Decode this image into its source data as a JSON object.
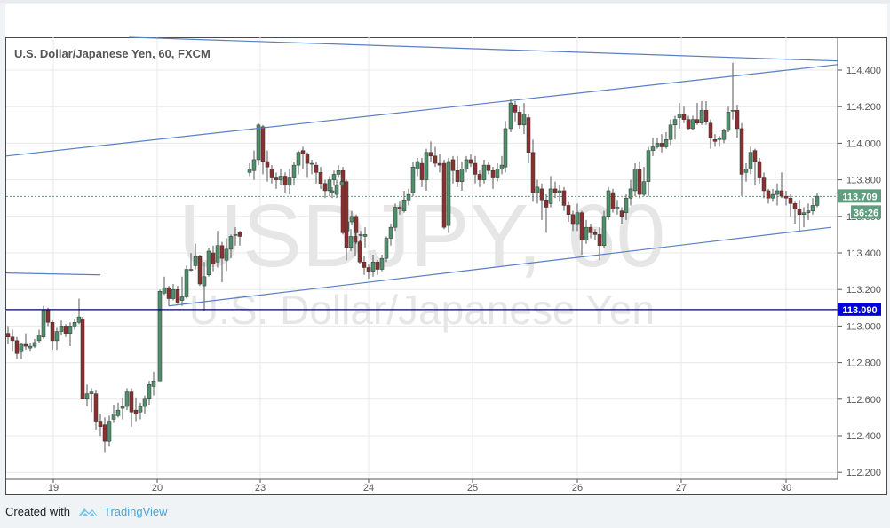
{
  "header": {
    "title": "U.S. Dollar/Japanese Yen, 60, FXCM"
  },
  "watermark": {
    "symbol": "USDJPY, 60",
    "name": "U.S. Dollar/Japanese Yen"
  },
  "footer": {
    "created_with": "Created with",
    "brand": "TradingView"
  },
  "price_axis": {
    "last_price": "113.709",
    "countdown": "36:26",
    "horizontal_line_price": "113.090",
    "colors": {
      "last_price_bg": "#5f9f7f",
      "hline_bg": "#0000d8",
      "hline": "#000066",
      "up": "#4f8f6c",
      "down": "#8b2f2f",
      "trendline": "#5a7fc4"
    }
  },
  "chart_data": {
    "type": "candlestick",
    "title": "U.S. Dollar/Japanese Yen, 60, FXCM",
    "xlabel": "",
    "ylabel": "",
    "x_ticks": [
      "19",
      "20",
      "23",
      "24",
      "25",
      "26",
      "27",
      "30"
    ],
    "y_ticks": [
      "114.400",
      "114.200",
      "114.000",
      "113.800",
      "113.600",
      "113.400",
      "113.200",
      "113.000",
      "112.800",
      "112.600",
      "112.400",
      "112.200"
    ],
    "ylim": [
      112.17,
      114.58
    ],
    "grid": true,
    "last_price": 113.709,
    "horizontal_line": 113.09,
    "trendlines": [
      {
        "name": "upper-channel",
        "from": [
          7,
          113.93
        ],
        "to": [
          943,
          114.43
        ]
      },
      {
        "name": "lower-channel",
        "from": [
          190,
          113.11
        ],
        "to": [
          936,
          113.54
        ]
      },
      {
        "name": "top-resistance",
        "from": [
          145,
          114.58
        ],
        "to": [
          943,
          114.45
        ]
      },
      {
        "name": "short-left",
        "from": [
          7,
          113.29
        ],
        "to": [
          113,
          113.28
        ]
      }
    ],
    "candles": [
      [
        9,
        112.96,
        112.94,
        113.0,
        112.9
      ],
      [
        14,
        112.94,
        112.92,
        112.98,
        112.86
      ],
      [
        19,
        112.92,
        112.85,
        112.94,
        112.82
      ],
      [
        24,
        112.86,
        112.9,
        112.91,
        112.82
      ],
      [
        29,
        112.9,
        112.89,
        112.96,
        112.87
      ],
      [
        34,
        112.88,
        112.89,
        112.91,
        112.86
      ],
      [
        39,
        112.89,
        112.91,
        112.93,
        112.88
      ],
      [
        44,
        112.92,
        112.95,
        112.98,
        112.91
      ],
      [
        49,
        112.94,
        113.09,
        113.11,
        112.93
      ],
      [
        54,
        113.09,
        113.02,
        113.1,
        113.0
      ],
      [
        59,
        113.02,
        112.92,
        113.03,
        112.87
      ],
      [
        64,
        112.92,
        112.97,
        112.99,
        112.87
      ],
      [
        69,
        112.97,
        113.0,
        113.03,
        112.95
      ],
      [
        74,
        113.0,
        112.96,
        113.01,
        112.94
      ],
      [
        79,
        112.96,
        113.0,
        113.02,
        112.89
      ],
      [
        84,
        113.0,
        113.02,
        113.04,
        112.98
      ],
      [
        89,
        113.02,
        113.05,
        113.15,
        113.01
      ],
      [
        93,
        113.04,
        112.6,
        113.05,
        112.6
      ],
      [
        98,
        112.6,
        112.63,
        112.68,
        112.56
      ],
      [
        103,
        112.63,
        112.64,
        112.66,
        112.53
      ],
      [
        108,
        112.63,
        112.48,
        112.65,
        112.43
      ],
      [
        113,
        112.48,
        112.45,
        112.52,
        112.4
      ],
      [
        118,
        112.46,
        112.37,
        112.5,
        112.31
      ],
      [
        123,
        112.37,
        112.48,
        112.51,
        112.34
      ],
      [
        128,
        112.49,
        112.52,
        112.57,
        112.47
      ],
      [
        133,
        112.51,
        112.54,
        112.58,
        112.5
      ],
      [
        138,
        112.55,
        112.56,
        112.61,
        112.49
      ],
      [
        143,
        112.56,
        112.64,
        112.66,
        112.54
      ],
      [
        148,
        112.64,
        112.53,
        112.66,
        112.45
      ],
      [
        153,
        112.54,
        112.52,
        112.61,
        112.48
      ],
      [
        158,
        112.53,
        112.56,
        112.58,
        112.49
      ],
      [
        163,
        112.56,
        112.6,
        112.62,
        112.52
      ],
      [
        168,
        112.6,
        112.68,
        112.7,
        112.57
      ],
      [
        173,
        112.67,
        112.7,
        112.75,
        112.62
      ],
      [
        180,
        112.7,
        113.19,
        113.2,
        112.7
      ],
      [
        185,
        113.18,
        113.21,
        113.27,
        113.17
      ],
      [
        190,
        113.21,
        113.15,
        113.22,
        113.11
      ],
      [
        195,
        113.15,
        113.2,
        113.23,
        113.14
      ],
      [
        200,
        113.2,
        113.13,
        113.22,
        113.12
      ],
      [
        205,
        113.14,
        113.16,
        113.27,
        113.11
      ],
      [
        210,
        113.16,
        113.31,
        113.33,
        113.15
      ],
      [
        215,
        113.31,
        113.31,
        113.4,
        113.3
      ],
      [
        220,
        113.33,
        113.38,
        113.45,
        113.31
      ],
      [
        225,
        113.38,
        113.23,
        113.39,
        113.22
      ],
      [
        230,
        113.22,
        113.27,
        113.35,
        113.08
      ],
      [
        235,
        113.28,
        113.41,
        113.43,
        113.27
      ],
      [
        240,
        113.4,
        113.34,
        113.44,
        113.3
      ],
      [
        245,
        113.35,
        113.44,
        113.52,
        113.32
      ],
      [
        250,
        113.44,
        113.37,
        113.46,
        113.24
      ],
      [
        255,
        113.36,
        113.42,
        113.48,
        113.3
      ],
      [
        260,
        113.42,
        113.49,
        113.5,
        113.37
      ],
      [
        265,
        113.5,
        113.5,
        113.54,
        113.44
      ],
      [
        270,
        113.51,
        113.49,
        113.52,
        113.44
      ],
      [
        281,
        113.84,
        113.86,
        113.89,
        113.82
      ],
      [
        286,
        113.85,
        113.91,
        113.96,
        113.8
      ],
      [
        291,
        113.91,
        114.1,
        114.11,
        113.88
      ],
      [
        296,
        114.09,
        113.9,
        114.1,
        113.83
      ],
      [
        301,
        113.9,
        113.87,
        113.96,
        113.79
      ],
      [
        306,
        113.86,
        113.81,
        113.88,
        113.78
      ],
      [
        311,
        113.81,
        113.8,
        113.84,
        113.75
      ],
      [
        316,
        113.8,
        113.82,
        113.86,
        113.77
      ],
      [
        321,
        113.82,
        113.77,
        113.84,
        113.73
      ],
      [
        326,
        113.77,
        113.81,
        113.86,
        113.72
      ],
      [
        331,
        113.81,
        113.88,
        113.9,
        113.77
      ],
      [
        336,
        113.88,
        113.95,
        113.96,
        113.83
      ],
      [
        341,
        113.96,
        113.94,
        113.98,
        113.86
      ],
      [
        346,
        113.94,
        113.89,
        113.95,
        113.81
      ],
      [
        351,
        113.89,
        113.89,
        113.91,
        113.83
      ],
      [
        356,
        113.88,
        113.84,
        113.9,
        113.78
      ],
      [
        361,
        113.84,
        113.78,
        113.87,
        113.75
      ],
      [
        366,
        113.78,
        113.74,
        113.8,
        113.7
      ],
      [
        371,
        113.74,
        113.8,
        113.82,
        113.71
      ],
      [
        376,
        113.8,
        113.83,
        113.85,
        113.77
      ],
      [
        381,
        113.83,
        113.85,
        113.88,
        113.81
      ],
      [
        386,
        113.85,
        113.51,
        113.87,
        113.5
      ],
      [
        391,
        113.52,
        113.57,
        113.62,
        113.47
      ],
      [
        396,
        113.57,
        113.6,
        113.63,
        113.55
      ],
      [
        401,
        113.6,
        113.51,
        113.61,
        113.45
      ],
      [
        406,
        113.5,
        113.5,
        113.52,
        113.44
      ],
      [
        411,
        113.49,
        113.5,
        113.54,
        113.43
      ],
      [
        374,
        113.73,
        113.74,
        113.76,
        113.7
      ],
      [
        379,
        113.72,
        113.77,
        113.8,
        113.7
      ],
      [
        385,
        113.77,
        113.79,
        113.82,
        113.76
      ],
      [
        390,
        113.79,
        113.43,
        113.8,
        113.36
      ],
      [
        395,
        113.43,
        113.49,
        113.53,
        113.41
      ],
      [
        400,
        113.49,
        113.46,
        113.52,
        113.38
      ],
      [
        405,
        113.46,
        113.35,
        113.47,
        113.34
      ],
      [
        410,
        113.35,
        113.32,
        113.38,
        113.28
      ],
      [
        415,
        113.32,
        113.3,
        113.34,
        113.26
      ],
      [
        420,
        113.3,
        113.35,
        113.39,
        113.27
      ],
      [
        425,
        113.35,
        113.31,
        113.36,
        113.28
      ],
      [
        430,
        113.31,
        113.37,
        113.39,
        113.3
      ],
      [
        435,
        113.37,
        113.48,
        113.49,
        113.35
      ],
      [
        440,
        113.48,
        113.54,
        113.56,
        113.44
      ],
      [
        445,
        113.54,
        113.65,
        113.67,
        113.52
      ],
      [
        450,
        113.65,
        113.64,
        113.68,
        113.61
      ],
      [
        455,
        113.63,
        113.69,
        113.74,
        113.62
      ],
      [
        460,
        113.69,
        113.72,
        113.75,
        113.66
      ],
      [
        465,
        113.73,
        113.87,
        113.9,
        113.71
      ],
      [
        470,
        113.86,
        113.9,
        113.92,
        113.82
      ],
      [
        475,
        113.89,
        113.8,
        113.92,
        113.76
      ],
      [
        480,
        113.8,
        113.95,
        113.97,
        113.74
      ],
      [
        485,
        113.95,
        113.93,
        114.01,
        113.9
      ],
      [
        490,
        113.93,
        113.89,
        113.98,
        113.87
      ],
      [
        495,
        113.89,
        113.88,
        113.94,
        113.84
      ],
      [
        500,
        113.89,
        113.54,
        113.91,
        113.53
      ],
      [
        505,
        113.55,
        113.9,
        113.92,
        113.51
      ],
      [
        510,
        113.91,
        113.85,
        113.93,
        113.78
      ],
      [
        515,
        113.85,
        113.79,
        113.93,
        113.76
      ],
      [
        520,
        113.79,
        113.86,
        113.9,
        113.74
      ],
      [
        525,
        113.86,
        113.91,
        113.93,
        113.84
      ],
      [
        530,
        113.91,
        113.89,
        113.94,
        113.87
      ],
      [
        535,
        113.89,
        113.83,
        113.93,
        113.78
      ],
      [
        540,
        113.83,
        113.8,
        113.85,
        113.76
      ],
      [
        545,
        113.8,
        113.88,
        113.91,
        113.78
      ],
      [
        550,
        113.88,
        113.85,
        113.9,
        113.83
      ],
      [
        555,
        113.85,
        113.81,
        113.87,
        113.75
      ],
      [
        560,
        113.81,
        113.86,
        113.89,
        113.79
      ],
      [
        565,
        113.86,
        113.88,
        113.93,
        113.83
      ],
      [
        569,
        113.87,
        114.08,
        114.12,
        113.84
      ],
      [
        575,
        114.08,
        114.22,
        114.24,
        114.06
      ],
      [
        580,
        114.21,
        114.17,
        114.23,
        114.12
      ],
      [
        585,
        114.17,
        114.1,
        114.2,
        114.08
      ],
      [
        590,
        114.1,
        114.16,
        114.22,
        114.05
      ],
      [
        595,
        114.14,
        113.95,
        114.16,
        113.89
      ],
      [
        600,
        113.95,
        113.73,
        114.02,
        113.68
      ],
      [
        605,
        113.73,
        113.76,
        113.8,
        113.67
      ],
      [
        610,
        113.75,
        113.69,
        113.78,
        113.58
      ],
      [
        615,
        113.69,
        113.65,
        113.72,
        113.51
      ],
      [
        620,
        113.67,
        113.75,
        113.82,
        113.65
      ],
      [
        625,
        113.75,
        113.73,
        113.79,
        113.7
      ],
      [
        630,
        113.73,
        113.74,
        113.77,
        113.68
      ],
      [
        635,
        113.74,
        113.66,
        113.76,
        113.63
      ],
      [
        640,
        113.66,
        113.61,
        113.68,
        113.57
      ],
      [
        645,
        113.61,
        113.56,
        113.63,
        113.52
      ],
      [
        650,
        113.56,
        113.62,
        113.67,
        113.52
      ],
      [
        655,
        113.62,
        113.47,
        113.63,
        113.39
      ],
      [
        660,
        113.47,
        113.54,
        113.58,
        113.45
      ],
      [
        665,
        113.54,
        113.51,
        113.56,
        113.48
      ],
      [
        670,
        113.51,
        113.5,
        113.53,
        113.47
      ],
      [
        675,
        113.5,
        113.44,
        113.54,
        113.36
      ],
      [
        680,
        113.44,
        113.6,
        113.63,
        113.43
      ],
      [
        685,
        113.6,
        113.74,
        113.76,
        113.58
      ],
      [
        690,
        113.73,
        113.64,
        113.75,
        113.62
      ],
      [
        695,
        113.64,
        113.65,
        113.69,
        113.61
      ],
      [
        700,
        113.63,
        113.6,
        113.65,
        113.56
      ],
      [
        705,
        113.62,
        113.7,
        113.72,
        113.58
      ],
      [
        710,
        113.7,
        113.75,
        113.8,
        113.66
      ],
      [
        715,
        113.74,
        113.86,
        113.89,
        113.71
      ],
      [
        720,
        113.86,
        113.72,
        113.9,
        113.7
      ],
      [
        725,
        113.72,
        113.79,
        113.87,
        113.71
      ],
      [
        730,
        113.79,
        113.96,
        113.98,
        113.71
      ],
      [
        735,
        113.96,
        113.98,
        114.03,
        113.93
      ],
      [
        740,
        113.98,
        114.0,
        114.03,
        113.97
      ],
      [
        745,
        114.0,
        113.98,
        114.05,
        113.95
      ],
      [
        750,
        113.98,
        114.02,
        114.06,
        113.97
      ],
      [
        755,
        114.02,
        114.1,
        114.13,
        113.99
      ],
      [
        760,
        114.1,
        114.13,
        114.15,
        114.02
      ],
      [
        765,
        114.14,
        114.16,
        114.22,
        114.08
      ],
      [
        770,
        114.16,
        114.13,
        114.2,
        114.11
      ],
      [
        775,
        114.13,
        114.08,
        114.15,
        114.07
      ],
      [
        780,
        114.08,
        114.13,
        114.15,
        114.07
      ],
      [
        785,
        114.13,
        114.11,
        114.22,
        114.1
      ],
      [
        790,
        114.11,
        114.18,
        114.23,
        114.1
      ],
      [
        795,
        114.18,
        114.12,
        114.23,
        114.1
      ],
      [
        800,
        114.11,
        114.03,
        114.13,
        113.97
      ],
      [
        805,
        114.02,
        114.01,
        114.05,
        113.98
      ],
      [
        810,
        114.02,
        114.03,
        114.04,
        113.98
      ],
      [
        815,
        114.02,
        114.07,
        114.08,
        114.0
      ],
      [
        820,
        114.07,
        114.17,
        114.2,
        114.06
      ],
      [
        825,
        114.18,
        114.18,
        114.44,
        114.13
      ],
      [
        830,
        114.18,
        114.08,
        114.21,
        114.03
      ],
      [
        835,
        114.08,
        113.83,
        114.11,
        113.71
      ],
      [
        840,
        113.84,
        113.86,
        113.89,
        113.79
      ],
      [
        845,
        113.86,
        113.95,
        113.98,
        113.83
      ],
      [
        850,
        113.96,
        113.9,
        113.97,
        113.77
      ],
      [
        855,
        113.9,
        113.81,
        113.92,
        113.78
      ],
      [
        860,
        113.81,
        113.74,
        113.84,
        113.7
      ],
      [
        865,
        113.74,
        113.7,
        113.75,
        113.67
      ],
      [
        870,
        113.7,
        113.72,
        113.75,
        113.68
      ],
      [
        875,
        113.72,
        113.74,
        113.78,
        113.66
      ],
      [
        880,
        113.74,
        113.71,
        113.84,
        113.7
      ],
      [
        885,
        113.71,
        113.7,
        113.74,
        113.66
      ],
      [
        890,
        113.7,
        113.67,
        113.72,
        113.6
      ],
      [
        895,
        113.67,
        113.64,
        113.68,
        113.56
      ],
      [
        900,
        113.64,
        113.61,
        113.69,
        113.52
      ],
      [
        905,
        113.61,
        113.62,
        113.65,
        113.54
      ],
      [
        910,
        113.62,
        113.63,
        113.67,
        113.58
      ],
      [
        915,
        113.63,
        113.66,
        113.7,
        113.61
      ],
      [
        920,
        113.66,
        113.71,
        113.73,
        113.65
      ]
    ]
  }
}
